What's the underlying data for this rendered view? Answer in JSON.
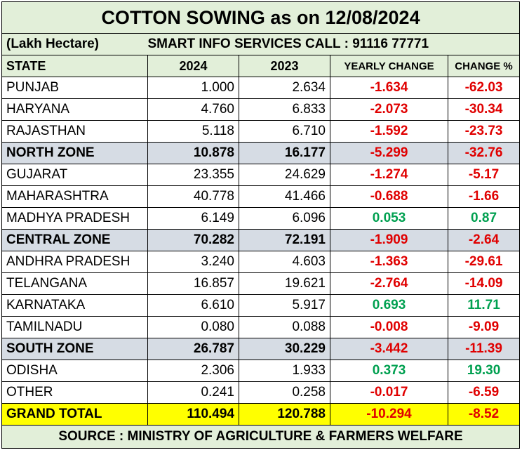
{
  "header": {
    "title": "COTTON SOWING  as on 12/08/2024",
    "unit": "(Lakh Hectare)",
    "subtitle": "SMART INFO SERVICES CALL : 91116 77771"
  },
  "table": {
    "columns": [
      "STATE",
      "2024",
      "2023",
      "YEARLY CHANGE",
      "CHANGE %"
    ],
    "rows": [
      [
        "PUNJAB",
        "1.000",
        "2.634",
        "-1.634",
        "-62.03"
      ],
      [
        "HARYANA",
        "4.760",
        "6.833",
        "-2.073",
        "-30.34"
      ],
      [
        "RAJASTHAN",
        "5.118",
        "6.710",
        "-1.592",
        "-23.73"
      ],
      [
        "NORTH ZONE",
        "10.878",
        "16.177",
        "-5.299",
        "-32.76"
      ],
      [
        "GUJARAT",
        "23.355",
        "24.629",
        "-1.274",
        "-5.17"
      ],
      [
        "MAHARASHTRA",
        "40.778",
        "41.466",
        "-0.688",
        "-1.66"
      ],
      [
        "MADHYA PRADESH",
        "6.149",
        "6.096",
        "0.053",
        "0.87"
      ],
      [
        "CENTRAL ZONE",
        "70.282",
        "72.191",
        "-1.909",
        "-2.64"
      ],
      [
        "ANDHRA PRADESH",
        "3.240",
        "4.603",
        "-1.363",
        "-29.61"
      ],
      [
        "TELANGANA",
        "16.857",
        "19.621",
        "-2.764",
        "-14.09"
      ],
      [
        "KARNATAKA",
        "6.610",
        "5.917",
        "0.693",
        "11.71"
      ],
      [
        "TAMILNADU",
        "0.080",
        "0.088",
        "-0.008",
        "-9.09"
      ],
      [
        "SOUTH ZONE",
        "26.787",
        "30.229",
        "-3.442",
        "-11.39"
      ],
      [
        "ODISHA",
        "2.306",
        "1.933",
        "0.373",
        "19.30"
      ],
      [
        "OTHER",
        "0.241",
        "0.258",
        "-0.017",
        "-6.59"
      ]
    ],
    "total": [
      "GRAND TOTAL",
      "110.494",
      "120.788",
      "-10.294",
      "-8.52"
    ]
  },
  "footer": {
    "source": "SOURCE : MINISTRY OF AGRICULTURE & FARMERS WELFARE"
  }
}
